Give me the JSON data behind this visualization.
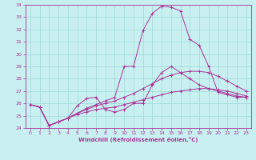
{
  "xlabel": "Windchill (Refroidissement éolien,°C)",
  "background_color": "#c8f0f0",
  "grid_color": "#a0d8d8",
  "line_color": "#aa3399",
  "xlim": [
    -0.5,
    23.5
  ],
  "ylim": [
    24,
    34
  ],
  "xticks": [
    0,
    1,
    2,
    3,
    4,
    5,
    6,
    7,
    8,
    9,
    10,
    11,
    12,
    13,
    14,
    15,
    16,
    17,
    18,
    19,
    20,
    21,
    22,
    23
  ],
  "yticks": [
    24,
    25,
    26,
    27,
    28,
    29,
    30,
    31,
    32,
    33,
    34
  ],
  "series": [
    [
      25.9,
      25.7,
      24.2,
      24.5,
      24.8,
      25.1,
      25.3,
      25.5,
      25.6,
      25.7,
      25.9,
      26.1,
      26.3,
      26.5,
      26.7,
      26.9,
      27.0,
      27.1,
      27.2,
      27.2,
      27.1,
      27.0,
      26.8,
      26.6
    ],
    [
      25.9,
      25.7,
      24.2,
      24.5,
      24.8,
      25.2,
      25.5,
      25.8,
      26.0,
      26.2,
      26.5,
      26.8,
      27.2,
      27.6,
      28.0,
      28.3,
      28.5,
      28.6,
      28.6,
      28.5,
      28.2,
      27.8,
      27.4,
      27.0
    ],
    [
      25.9,
      25.7,
      24.2,
      24.5,
      24.8,
      25.2,
      25.6,
      25.9,
      26.2,
      26.5,
      29.0,
      29.0,
      31.9,
      33.3,
      33.9,
      33.8,
      33.5,
      31.2,
      30.7,
      29.0,
      26.9,
      26.7,
      26.5,
      26.5
    ],
    [
      25.9,
      25.7,
      24.2,
      24.5,
      24.8,
      25.8,
      26.4,
      26.5,
      25.5,
      25.3,
      25.5,
      26.0,
      26.0,
      27.5,
      28.5,
      29.0,
      28.5,
      28.0,
      27.5,
      27.2,
      27.0,
      26.8,
      26.6,
      26.5
    ]
  ]
}
